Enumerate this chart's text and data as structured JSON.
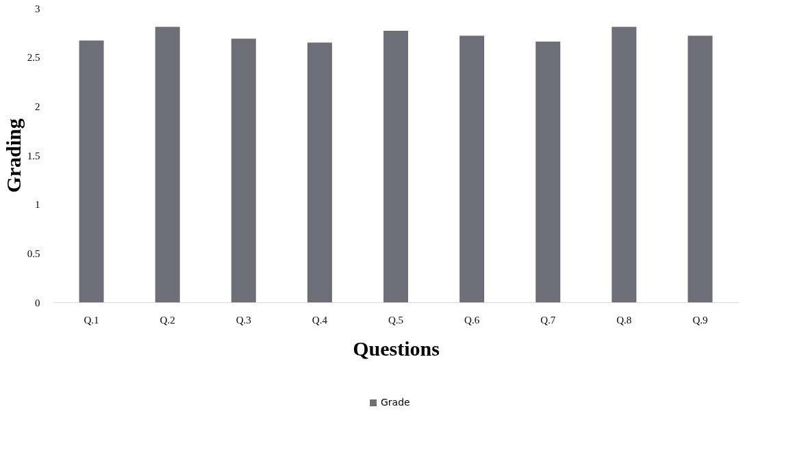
{
  "chart_data": {
    "type": "bar",
    "xlabel": "Questions",
    "ylabel": "Grading",
    "categories": [
      "Q.1",
      "Q.2",
      "Q.3",
      "Q.4",
      "Q.5",
      "Q.6",
      "Q.7",
      "Q.8",
      "Q.9"
    ],
    "series": [
      {
        "name": "Grade",
        "color": "#6e6e78",
        "values": [
          2.67,
          2.81,
          2.69,
          2.65,
          2.77,
          2.72,
          2.66,
          2.81,
          2.72
        ]
      }
    ],
    "ylim": [
      0,
      3
    ],
    "yticks": [
      0,
      0.5,
      1,
      1.5,
      2,
      2.5,
      3
    ],
    "grid": false,
    "legend": "bottom"
  }
}
